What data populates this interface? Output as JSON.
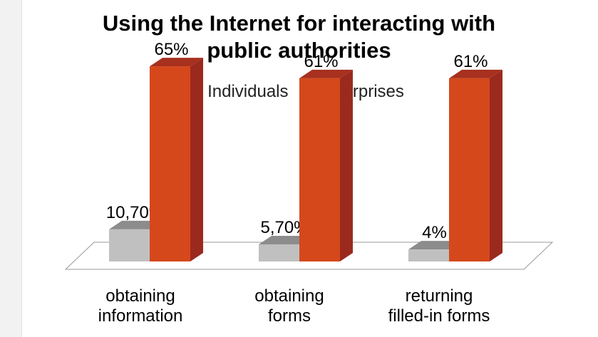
{
  "chart_data": {
    "type": "bar",
    "title_lines": [
      "Using the Internet for interacting with",
      "public authorities"
    ],
    "categories": [
      [
        "obtaining",
        "information"
      ],
      [
        "obtaining",
        "forms"
      ],
      [
        "returning",
        "filled-in forms"
      ]
    ],
    "series": [
      {
        "name": "Individuals",
        "values": [
          10.7,
          5.7,
          4
        ],
        "labels": [
          "10,70%",
          "5,70%",
          "4%"
        ],
        "color": "#c0c0c0",
        "top_color": "#8c8c8c",
        "side_color": "#a6a6a6"
      },
      {
        "name": "Enterprises",
        "values": [
          65,
          61,
          61
        ],
        "labels": [
          "65%",
          "61%",
          "61%"
        ],
        "color": "#d5481c",
        "top_color": "#a7301e",
        "side_color": "#9b2a1e"
      }
    ],
    "ylim": [
      0,
      70
    ],
    "legend_position": "top-center",
    "grid": false
  }
}
